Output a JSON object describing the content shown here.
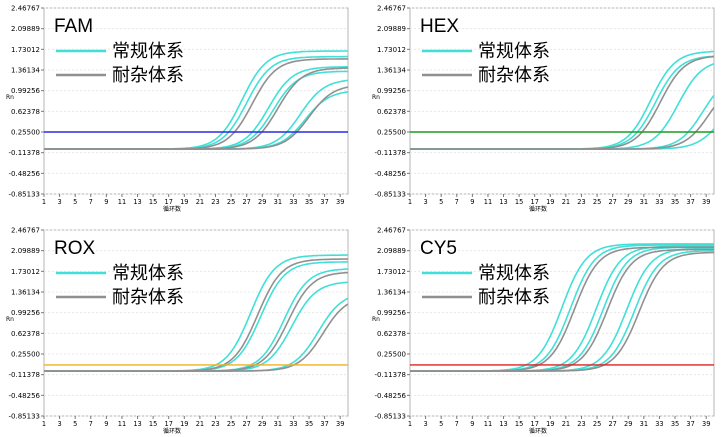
{
  "figure": {
    "xlabel": "循环数",
    "ylabel": "Rn",
    "legend": [
      {
        "label": "常规体系",
        "color": "#40e0d8"
      },
      {
        "label": "耐杂体系",
        "color": "#909090"
      }
    ]
  },
  "chart_data": [
    {
      "type": "line",
      "title": "FAM",
      "xlabel": "循环数",
      "ylabel": "Rn",
      "x_ticks": [
        1,
        3,
        5,
        7,
        9,
        11,
        13,
        15,
        17,
        19,
        21,
        23,
        25,
        27,
        29,
        31,
        33,
        35,
        37,
        39
      ],
      "y_ticks": [
        "2.46767",
        "2.09889",
        "1.73012",
        "1.36134",
        "0.99256",
        "0.62378",
        "0.25500",
        "-0.11378",
        "-0.48256",
        "-0.85133"
      ],
      "xlim": [
        1,
        40
      ],
      "ylim": [
        -0.85133,
        2.46767
      ],
      "threshold": {
        "value": 0.255,
        "color": "#2a2ae6"
      },
      "series": [
        {
          "name": "常规体系",
          "color": "#40e0d8",
          "curves": [
            {
              "ct": 23.2,
              "plateau": 1.7
            },
            {
              "ct": 23.8,
              "plateau": 1.6
            },
            {
              "ct": 26.6,
              "plateau": 1.42
            },
            {
              "ct": 27.2,
              "plateau": 1.34
            },
            {
              "ct": 30.7,
              "plateau": 1.2
            },
            {
              "ct": 31.3,
              "plateau": 1.0
            }
          ]
        },
        {
          "name": "耐杂体系",
          "color": "#909090",
          "curves": [
            {
              "ct": 24.5,
              "plateau": 1.56
            },
            {
              "ct": 27.8,
              "plateau": 1.4
            },
            {
              "ct": 31.8,
              "plateau": 1.1
            }
          ]
        }
      ]
    },
    {
      "type": "line",
      "title": "HEX",
      "xlabel": "循环数",
      "ylabel": "Rn",
      "x_ticks": [
        1,
        3,
        5,
        7,
        9,
        11,
        13,
        15,
        17,
        19,
        21,
        23,
        25,
        27,
        29,
        31,
        33,
        35,
        37,
        39
      ],
      "y_ticks": [
        "2.46767",
        "2.09889",
        "1.73012",
        "1.36134",
        "0.99256",
        "0.62378",
        "0.25500",
        "-0.11378",
        "-0.48256",
        "-0.85133"
      ],
      "xlim": [
        1,
        40
      ],
      "ylim": [
        -0.85133,
        2.46767
      ],
      "threshold": {
        "value": 0.255,
        "color": "#1e9b1e"
      },
      "series": [
        {
          "name": "常规体系",
          "color": "#40e0d8",
          "curves": [
            {
              "ct": 28.7,
              "plateau": 1.7
            },
            {
              "ct": 29.3,
              "plateau": 1.62
            },
            {
              "ct": 32.2,
              "plateau": 1.55
            },
            {
              "ct": 35.4,
              "plateau": 1.3
            },
            {
              "ct": 37.8,
              "plateau": 1.0
            }
          ]
        },
        {
          "name": "耐杂体系",
          "color": "#909090",
          "curves": [
            {
              "ct": 29.9,
              "plateau": 1.62
            },
            {
              "ct": 36.2,
              "plateau": 1.2
            }
          ]
        }
      ]
    },
    {
      "type": "line",
      "title": "ROX",
      "xlabel": "循环数",
      "ylabel": "Rn",
      "x_ticks": [
        1,
        3,
        5,
        7,
        9,
        11,
        13,
        15,
        17,
        19,
        21,
        23,
        25,
        27,
        29,
        31,
        33,
        35,
        37,
        39
      ],
      "y_ticks": [
        "2.46767",
        "2.09889",
        "1.73012",
        "1.36134",
        "0.99256",
        "0.62378",
        "0.25500",
        "-0.11378",
        "-0.48256",
        "-0.85133"
      ],
      "xlim": [
        1,
        40
      ],
      "ylim": [
        -0.85133,
        2.46767
      ],
      "threshold": {
        "value": 0.06,
        "color": "#f0b020"
      },
      "series": [
        {
          "name": "常规体系",
          "color": "#40e0d8",
          "curves": [
            {
              "ct": 24.3,
              "plateau": 2.02
            },
            {
              "ct": 25.6,
              "plateau": 1.9
            },
            {
              "ct": 28.6,
              "plateau": 1.78
            },
            {
              "ct": 29.6,
              "plateau": 1.55
            },
            {
              "ct": 33.0,
              "plateau": 1.36
            }
          ]
        },
        {
          "name": "耐杂体系",
          "color": "#909090",
          "curves": [
            {
              "ct": 25.2,
              "plateau": 1.95
            },
            {
              "ct": 29.1,
              "plateau": 1.72
            },
            {
              "ct": 33.6,
              "plateau": 1.3
            }
          ]
        }
      ]
    },
    {
      "type": "line",
      "title": "CY5",
      "xlabel": "循环数",
      "ylabel": "Rn",
      "x_ticks": [
        1,
        3,
        5,
        7,
        9,
        11,
        13,
        15,
        17,
        19,
        21,
        23,
        25,
        27,
        29,
        31,
        33,
        35,
        37,
        39
      ],
      "y_ticks": [
        "2.46767",
        "2.09889",
        "1.73012",
        "1.36134",
        "0.99256",
        "0.62378",
        "0.25500",
        "-0.11378",
        "-0.48256",
        "-0.85133"
      ],
      "xlim": [
        1,
        40
      ],
      "ylim": [
        -0.85133,
        2.46767
      ],
      "threshold": {
        "value": 0.06,
        "color": "#e02020"
      },
      "series": [
        {
          "name": "常规体系",
          "color": "#40e0d8",
          "curves": [
            {
              "ct": 17.3,
              "plateau": 2.22
            },
            {
              "ct": 18.4,
              "plateau": 2.2
            },
            {
              "ct": 21.7,
              "plateau": 2.18
            },
            {
              "ct": 22.6,
              "plateau": 2.16
            },
            {
              "ct": 25.6,
              "plateau": 2.14
            },
            {
              "ct": 26.6,
              "plateau": 2.1
            }
          ]
        },
        {
          "name": "耐杂体系",
          "color": "#909090",
          "curves": [
            {
              "ct": 18.9,
              "plateau": 2.16
            },
            {
              "ct": 23.1,
              "plateau": 2.12
            },
            {
              "ct": 27.2,
              "plateau": 2.07
            }
          ]
        }
      ]
    }
  ]
}
